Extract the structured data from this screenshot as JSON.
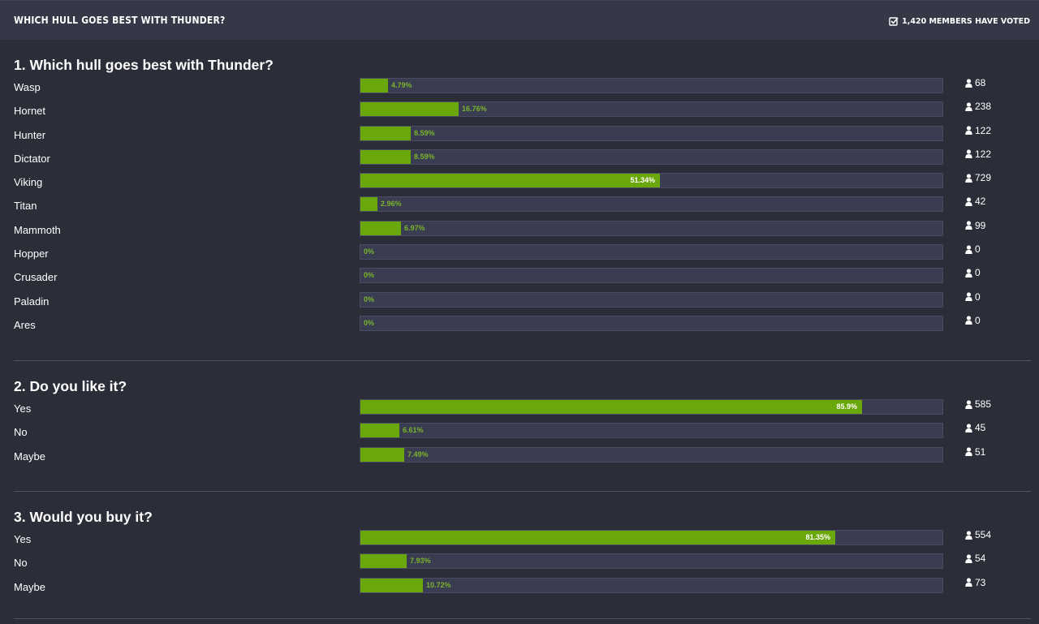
{
  "header": {
    "title": "Which hull goes best with Thunder?",
    "voted_text": "1,420 members have voted",
    "voted_icon": "check-square-icon"
  },
  "colors": {
    "bar_fill": "#6aa708",
    "bar_track": "#3a3d52",
    "pct_inside": "#ffffff",
    "pct_outside": "#79b32a"
  },
  "vote_icon": "user-icon",
  "questions": [
    {
      "title": "1. Which hull goes best with Thunder?",
      "choices": [
        {
          "label": "Wasp",
          "percent": 4.79,
          "percent_text": "4.79%",
          "votes": "68"
        },
        {
          "label": "Hornet",
          "percent": 16.76,
          "percent_text": "16.76%",
          "votes": "238"
        },
        {
          "label": "Hunter",
          "percent": 8.59,
          "percent_text": "8.59%",
          "votes": "122"
        },
        {
          "label": "Dictator",
          "percent": 8.59,
          "percent_text": "8.59%",
          "votes": "122"
        },
        {
          "label": "Viking",
          "percent": 51.34,
          "percent_text": "51.34%",
          "votes": "729"
        },
        {
          "label": "Titan",
          "percent": 2.96,
          "percent_text": "2.96%",
          "votes": "42"
        },
        {
          "label": "Mammoth",
          "percent": 6.97,
          "percent_text": "6.97%",
          "votes": "99"
        },
        {
          "label": "Hopper",
          "percent": 0,
          "percent_text": "0%",
          "votes": "0"
        },
        {
          "label": "Crusader",
          "percent": 0,
          "percent_text": "0%",
          "votes": "0"
        },
        {
          "label": "Paladin",
          "percent": 0,
          "percent_text": "0%",
          "votes": "0"
        },
        {
          "label": "Ares",
          "percent": 0,
          "percent_text": "0%",
          "votes": "0"
        }
      ]
    },
    {
      "title": "2. Do you like it?",
      "choices": [
        {
          "label": "Yes",
          "percent": 85.9,
          "percent_text": "85.9%",
          "votes": "585"
        },
        {
          "label": "No",
          "percent": 6.61,
          "percent_text": "6.61%",
          "votes": "45"
        },
        {
          "label": "Maybe",
          "percent": 7.49,
          "percent_text": "7.49%",
          "votes": "51"
        }
      ]
    },
    {
      "title": "3. Would you buy it?",
      "choices": [
        {
          "label": "Yes",
          "percent": 81.35,
          "percent_text": "81.35%",
          "votes": "554"
        },
        {
          "label": "No",
          "percent": 7.93,
          "percent_text": "7.93%",
          "votes": "54"
        },
        {
          "label": "Maybe",
          "percent": 10.72,
          "percent_text": "10.72%",
          "votes": "73"
        }
      ]
    }
  ]
}
